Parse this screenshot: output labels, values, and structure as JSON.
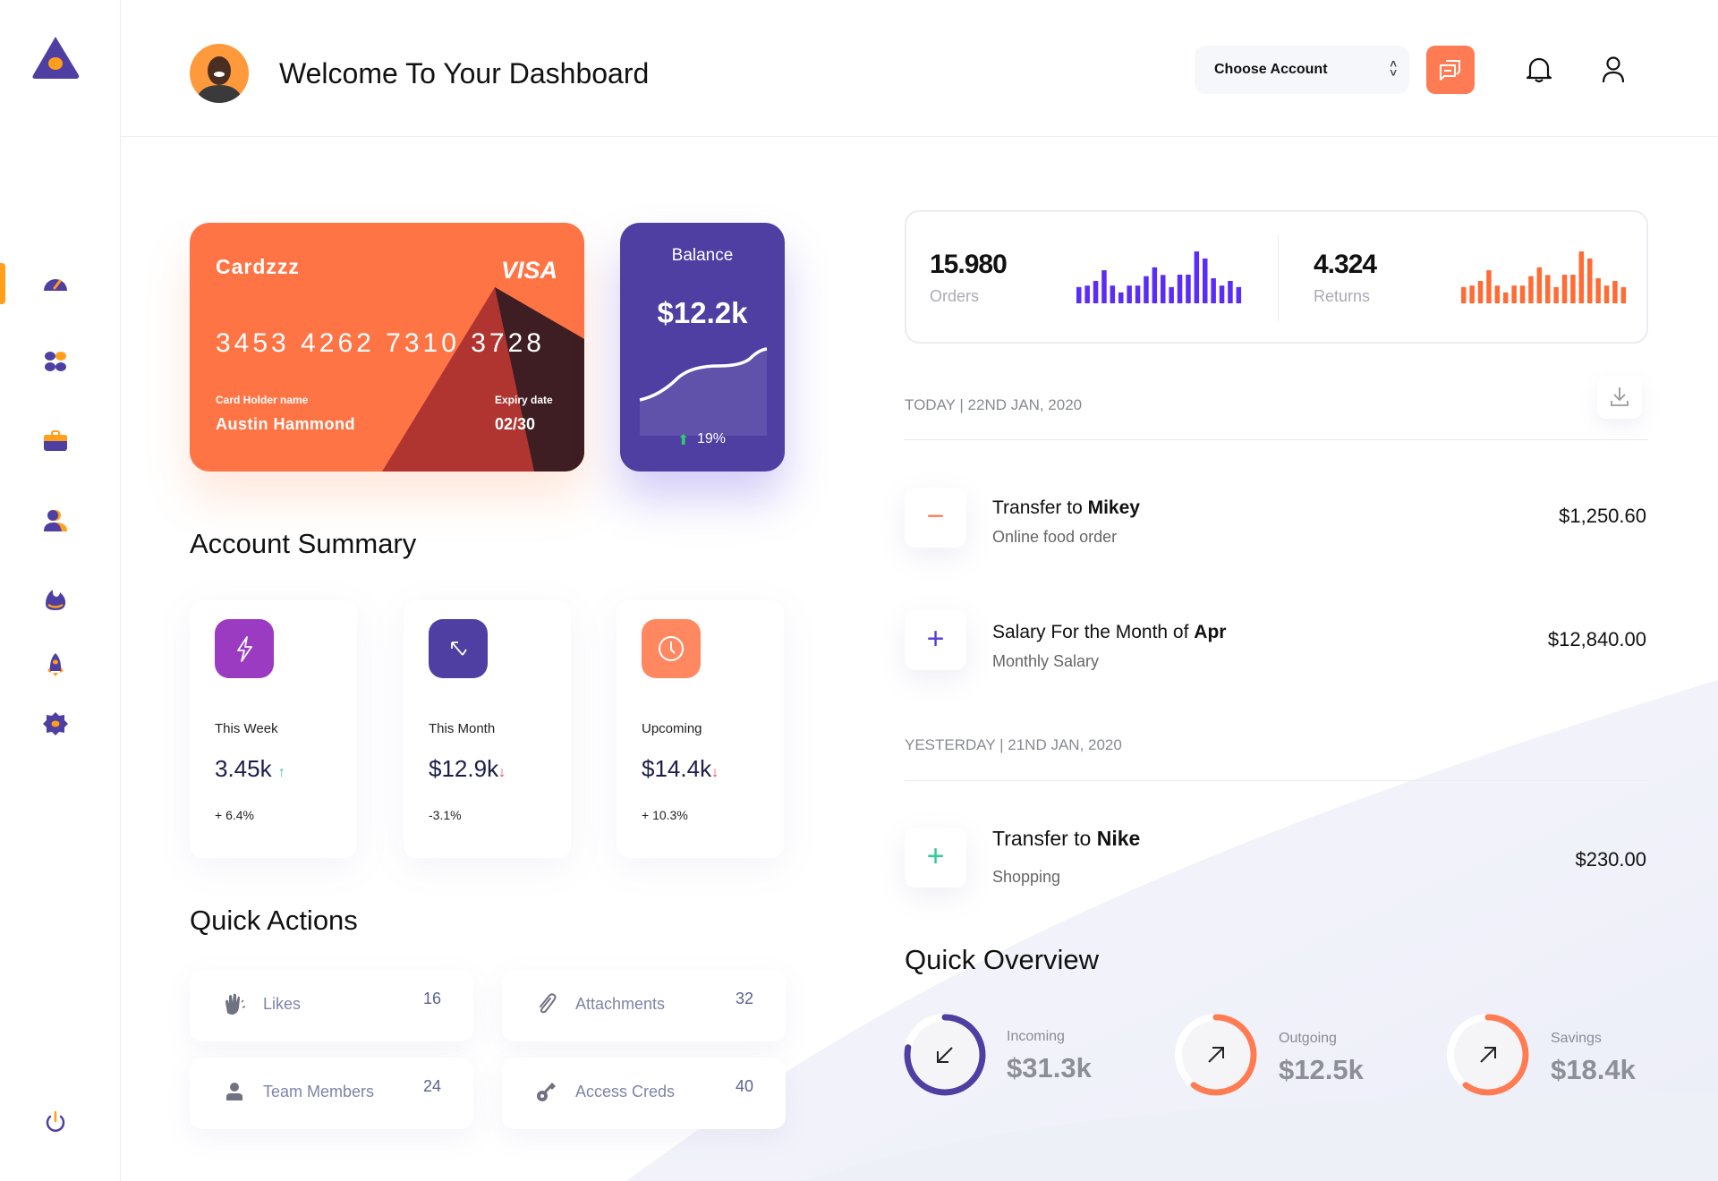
{
  "header": {
    "title": "Welcome To Your Dashboard",
    "account_select": {
      "value": "Choose Account"
    }
  },
  "sidebar": {
    "items": [
      {
        "icon": "dashboard-icon",
        "active": true
      },
      {
        "icon": "apps-icon"
      },
      {
        "icon": "briefcase-icon"
      },
      {
        "icon": "users-icon"
      },
      {
        "icon": "fire-icon"
      },
      {
        "icon": "rocket-icon"
      },
      {
        "icon": "settings-icon"
      }
    ],
    "logout_icon": "power-icon"
  },
  "card": {
    "brand": "Cardzzz",
    "network": "VISA",
    "number": "3453 4262 7310 3728",
    "holder_label": "Card Holder name",
    "holder": "Austin Hammond",
    "expiry_label": "Expiry date",
    "expiry": "02/30"
  },
  "balance": {
    "label": "Balance",
    "value": "$12.2k",
    "change": "19%"
  },
  "account_summary": {
    "title": "Account Summary",
    "cards": [
      {
        "label": "This Week",
        "value": "3.45k",
        "change": "+ 6.4%",
        "trend": "up",
        "color": "#9b3bc2",
        "icon": "lightning-icon"
      },
      {
        "label": "This Month",
        "value": "$12.9k",
        "change": "-3.1%",
        "trend": "down",
        "color": "#4f3fa2",
        "icon": "arrow-up-left-icon"
      },
      {
        "label": "Upcoming",
        "value": "$14.4k",
        "change": "+ 10.3%",
        "trend": "down",
        "color": "#ff8860",
        "icon": "clock-icon"
      }
    ]
  },
  "quick_actions": {
    "title": "Quick Actions",
    "items": [
      {
        "label": "Likes",
        "count": "16",
        "icon": "clap-icon"
      },
      {
        "label": "Attachments",
        "count": "32",
        "icon": "paperclip-icon"
      },
      {
        "label": "Team Members",
        "count": "24",
        "icon": "user-icon"
      },
      {
        "label": "Access Creds",
        "count": "40",
        "icon": "key-icon"
      }
    ]
  },
  "stats": {
    "orders": {
      "value": "15.980",
      "label": "Orders",
      "color": "#5a2cf5",
      "bars": [
        55,
        60,
        76,
        112,
        60,
        37,
        60,
        60,
        92,
        122,
        96,
        55,
        97,
        97,
        176,
        152,
        85,
        60,
        76,
        55
      ]
    },
    "returns": {
      "value": "4.324",
      "label": "Returns",
      "color": "#ff6b35",
      "bars": [
        55,
        60,
        76,
        112,
        60,
        37,
        60,
        60,
        92,
        122,
        96,
        55,
        97,
        97,
        176,
        152,
        85,
        60,
        76,
        55
      ]
    }
  },
  "transactions": {
    "groups": [
      {
        "date": "TODAY | 22ND JAN, 2020",
        "items": [
          {
            "title": "Transfer to ",
            "name": "Mikey",
            "sub": "Online food order",
            "amount": "$1,250.60",
            "sign": "−",
            "sign_color": "#ff7b54"
          },
          {
            "title": "Salary For the Month of ",
            "name": "Apr",
            "sub": "Monthly Salary",
            "amount": "$12,840.00",
            "sign": "+",
            "sign_color": "#5a3fd6"
          }
        ]
      },
      {
        "date": "YESTERDAY | 21ND JAN, 2020",
        "items": [
          {
            "title": "Transfer to ",
            "name": "Nike",
            "sub": "Shopping",
            "amount": "$230.00",
            "sign": "+",
            "sign_color": "#2ecc9a"
          }
        ]
      }
    ]
  },
  "quick_overview": {
    "title": "Quick Overview",
    "items": [
      {
        "label": "Incoming",
        "value": "$31.3k",
        "progress": 0.78,
        "color": "#4f3fa2",
        "icon": "arrow-down-left-icon"
      },
      {
        "label": "Outgoing",
        "value": "$12.5k",
        "progress": 0.6,
        "color": "#ff7b54",
        "icon": "arrow-up-right-icon"
      },
      {
        "label": "Savings",
        "value": "$18.4k",
        "progress": 0.6,
        "color": "#ff7b54",
        "icon": "arrow-up-right-icon"
      }
    ]
  }
}
